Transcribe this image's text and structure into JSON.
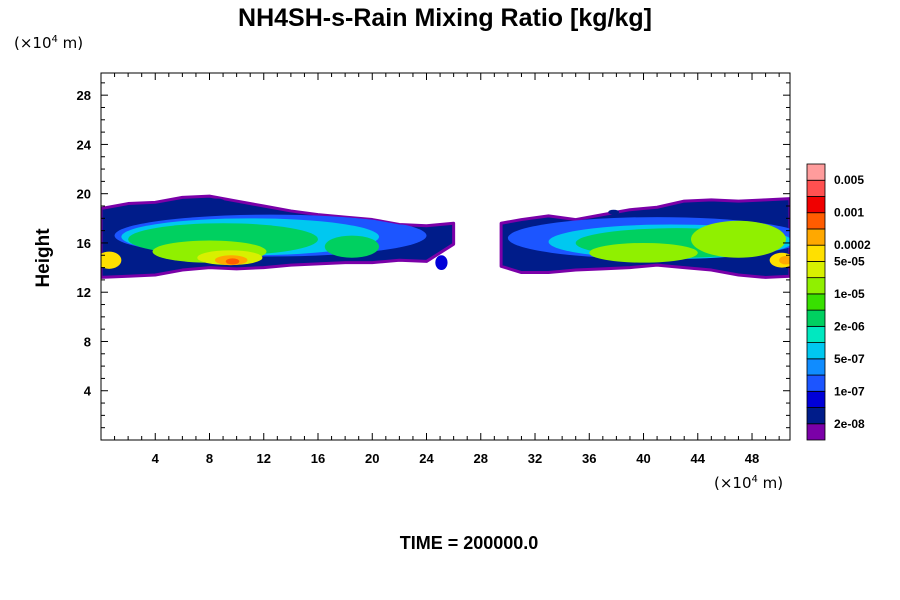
{
  "chart_data": {
    "type": "heatmap",
    "title": "NH4SH-s-Rain Mixing Ratio [kg/kg]",
    "ylabel": "Height",
    "xlabel": "",
    "x_unit": {
      "prefix": "(×10",
      "exp": "4",
      "suffix": " m)"
    },
    "y_unit": {
      "prefix": "(×10",
      "exp": "4",
      "suffix": " m)"
    },
    "xlim": [
      0,
      50.8
    ],
    "ylim": [
      0,
      29.8
    ],
    "x_ticks": [
      4,
      8,
      12,
      16,
      20,
      24,
      28,
      32,
      36,
      40,
      44,
      48
    ],
    "x_tick_labels": [
      "4",
      "8",
      "12",
      "16",
      "20",
      "24",
      "28",
      "32",
      "36",
      "40",
      "44",
      "48"
    ],
    "y_ticks": [
      4,
      8,
      12,
      16,
      20,
      24,
      28
    ],
    "y_tick_labels": [
      "4",
      "8",
      "12",
      "16",
      "20",
      "24",
      "28"
    ],
    "time_label": "TIME = 200000.0",
    "colorbar": {
      "colors": [
        "#7b00a8",
        "#001c8a",
        "#0000d8",
        "#1c55ff",
        "#108cff",
        "#00c8f0",
        "#00e8c0",
        "#00d060",
        "#38e000",
        "#90f000",
        "#d8f000",
        "#ffe000",
        "#ffa800",
        "#ff5c00",
        "#f00000",
        "#ff5050",
        "#ff9c9c"
      ],
      "labels": [
        "2e-08",
        "1e-07",
        "5e-07",
        "2e-06",
        "1e-05",
        "5e-05",
        "0.0002",
        "0.001",
        "0.005"
      ],
      "label_levels": [
        1,
        3,
        5,
        7,
        9,
        11,
        12,
        14,
        16
      ]
    },
    "cloud_bands": [
      {
        "name": "west",
        "top": [
          [
            0,
            18.8
          ],
          [
            2,
            19.2
          ],
          [
            4,
            19.3
          ],
          [
            6,
            19.7
          ],
          [
            8,
            19.8
          ],
          [
            10,
            19.4
          ],
          [
            12,
            19.0
          ],
          [
            14,
            18.6
          ],
          [
            16,
            18.3
          ],
          [
            18,
            18.1
          ],
          [
            20,
            17.9
          ],
          [
            22,
            17.5
          ],
          [
            24,
            17.4
          ],
          [
            26,
            17.6
          ]
        ],
        "bottom": [
          [
            0,
            13.2
          ],
          [
            2,
            13.3
          ],
          [
            4,
            13.4
          ],
          [
            6,
            13.8
          ],
          [
            8,
            14.0
          ],
          [
            10,
            13.9
          ],
          [
            12,
            14.0
          ],
          [
            14,
            14.2
          ],
          [
            16,
            14.3
          ],
          [
            18,
            14.4
          ],
          [
            20,
            14.4
          ],
          [
            22,
            14.6
          ],
          [
            24,
            14.5
          ],
          [
            26,
            15.9
          ]
        ],
        "levels": [
          {
            "level": 3,
            "cx": 12.5,
            "cy": 16.6,
            "rx": 11.5,
            "ry": 1.7
          },
          {
            "level": 5,
            "cx": 11.0,
            "cy": 16.5,
            "rx": 9.5,
            "ry": 1.5
          },
          {
            "level": 7,
            "cx": 9.0,
            "cy": 16.3,
            "rx": 7.0,
            "ry": 1.3
          },
          {
            "level": 9,
            "cx": 8.0,
            "cy": 15.3,
            "rx": 4.2,
            "ry": 0.9
          },
          {
            "level": 10,
            "cx": 9.5,
            "cy": 14.8,
            "rx": 2.4,
            "ry": 0.6
          },
          {
            "level": 12,
            "cx": 9.6,
            "cy": 14.6,
            "rx": 1.2,
            "ry": 0.4
          },
          {
            "level": 13,
            "cx": 9.7,
            "cy": 14.5,
            "rx": 0.5,
            "ry": 0.25
          },
          {
            "level": 11,
            "cx": 0.6,
            "cy": 14.6,
            "rx": 0.9,
            "ry": 0.7
          },
          {
            "level": 7,
            "cx": 18.5,
            "cy": 15.7,
            "rx": 2.0,
            "ry": 0.9
          }
        ]
      },
      {
        "name": "east",
        "top": [
          [
            29.5,
            17.6
          ],
          [
            31,
            17.9
          ],
          [
            33,
            18.2
          ],
          [
            35,
            17.9
          ],
          [
            37,
            18.3
          ],
          [
            39,
            18.7
          ],
          [
            41,
            18.9
          ],
          [
            43,
            19.4
          ],
          [
            45,
            19.5
          ],
          [
            47,
            19.4
          ],
          [
            49,
            19.5
          ],
          [
            50.8,
            19.6
          ]
        ],
        "bottom": [
          [
            29.5,
            14.1
          ],
          [
            31,
            13.6
          ],
          [
            33,
            13.6
          ],
          [
            35,
            13.8
          ],
          [
            37,
            13.9
          ],
          [
            39,
            14.0
          ],
          [
            41,
            14.2
          ],
          [
            43,
            14.0
          ],
          [
            45,
            13.8
          ],
          [
            47,
            13.4
          ],
          [
            49,
            13.2
          ],
          [
            50.8,
            13.3
          ]
        ],
        "levels": [
          {
            "level": 3,
            "cx": 41.0,
            "cy": 16.4,
            "rx": 11.0,
            "ry": 1.7
          },
          {
            "level": 5,
            "cx": 42.0,
            "cy": 16.1,
            "rx": 9.0,
            "ry": 1.4
          },
          {
            "level": 7,
            "cx": 42.5,
            "cy": 16.0,
            "rx": 7.5,
            "ry": 1.2
          },
          {
            "level": 9,
            "cx": 40.0,
            "cy": 15.2,
            "rx": 4.0,
            "ry": 0.8
          },
          {
            "level": 9,
            "cx": 47.0,
            "cy": 16.3,
            "rx": 3.5,
            "ry": 1.5
          },
          {
            "level": 11,
            "cx": 50.2,
            "cy": 14.6,
            "rx": 0.9,
            "ry": 0.6
          },
          {
            "level": 12,
            "cx": 50.5,
            "cy": 14.6,
            "rx": 0.5,
            "ry": 0.35
          }
        ]
      }
    ],
    "detached_cells": [
      {
        "level": 2,
        "cx": 25.1,
        "cy": 14.4,
        "rx": 0.45,
        "ry": 0.6
      },
      {
        "level": 1,
        "cx": 8.6,
        "cy": 19.4,
        "rx": 0.5,
        "ry": 0.2
      },
      {
        "level": 1,
        "cx": 37.8,
        "cy": 18.5,
        "rx": 0.4,
        "ry": 0.2
      }
    ]
  }
}
